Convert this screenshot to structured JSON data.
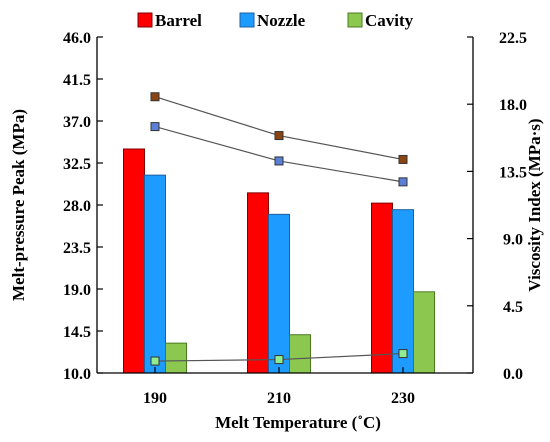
{
  "chart_data": {
    "type": "bar",
    "xlabel": "Melt Temperature (˚C)",
    "ylabel": "Melt-pressure  Peak (MPa)",
    "y2label": "Viscosity Index (MPa·s)",
    "categories": [
      "190",
      "210",
      "230"
    ],
    "ylim": [
      10.0,
      46.0
    ],
    "y2lim": [
      0.0,
      22.5
    ],
    "yticks": [
      "46.0",
      "41.5",
      "37.0",
      "32.5",
      "28.0",
      "23.5",
      "19.0",
      "14.5",
      "10.0"
    ],
    "y2ticks": [
      "22.5",
      "18.0",
      "13.5",
      "9.0",
      "4.5",
      "0.0"
    ],
    "legend_position": "top",
    "grid": false,
    "series": [
      {
        "name": "Barrel",
        "color": "#ff0000",
        "border": "#800000",
        "values": [
          34.0,
          29.3,
          28.2
        ]
      },
      {
        "name": "Nozzle",
        "color": "#1e9bff",
        "border": "#1f5fa0",
        "values": [
          31.2,
          27.0,
          27.5
        ]
      },
      {
        "name": "Cavity",
        "color": "#8cc850",
        "border": "#4a7a20",
        "values": [
          13.2,
          14.1,
          18.7
        ]
      }
    ],
    "viscosity_lines": [
      {
        "series": "Barrel",
        "marker_color": "#8b4513",
        "values": [
          18.5,
          15.9,
          14.3
        ]
      },
      {
        "series": "Nozzle",
        "marker_color": "#5b7fd6",
        "values": [
          16.5,
          14.2,
          12.8
        ]
      },
      {
        "series": "Cavity",
        "marker_color": "#90ee90",
        "values": [
          0.8,
          0.9,
          1.3
        ]
      }
    ]
  }
}
